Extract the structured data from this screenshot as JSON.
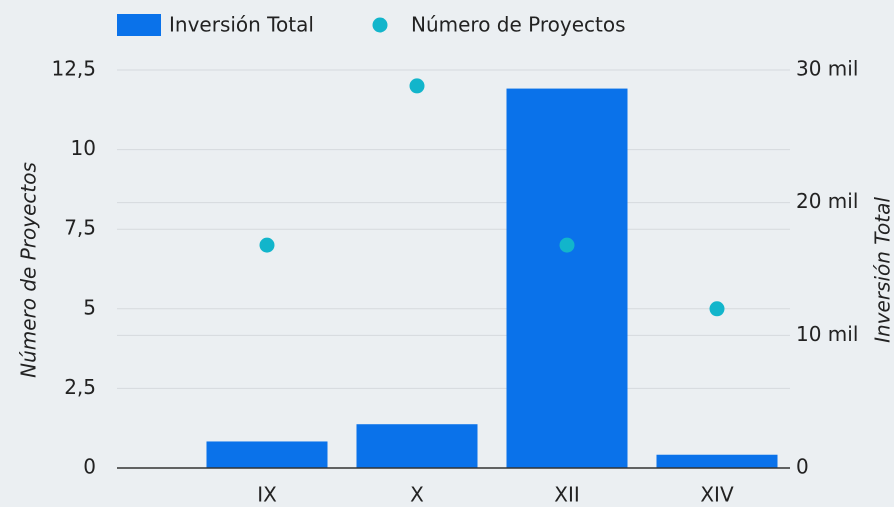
{
  "chart_data": {
    "type": "bar_scatter",
    "categories": [
      null,
      "IX",
      "X",
      "XII",
      "XIV"
    ],
    "series": [
      {
        "name": "Inversión Total",
        "color": "#0a72ea",
        "axis": "y2",
        "values": [
          null,
          2000,
          3300,
          28600,
          1000
        ]
      },
      {
        "name": "Número de Proyectos",
        "color": "#12b5cb",
        "values": [
          null,
          7,
          12,
          7,
          5
        ]
      }
    ],
    "ylabel": "Número de Proyectos",
    "y2label": "Inversión Total",
    "ylim": [
      0,
      12.5
    ],
    "yticks": [
      0,
      {
        "value": 2.5,
        "label": "2,5"
      },
      5,
      {
        "value": 7.5,
        "label": "7,5"
      },
      10,
      {
        "value": 12.5,
        "label": "12,5"
      }
    ],
    "y2lim": [
      0,
      30000
    ],
    "y2ticks": [
      0,
      {
        "value": 10000,
        "label": "10 mil"
      },
      {
        "value": 20000,
        "label": "20 mil"
      },
      {
        "value": 30000,
        "label": "30 mil"
      }
    ],
    "grid": true
  }
}
